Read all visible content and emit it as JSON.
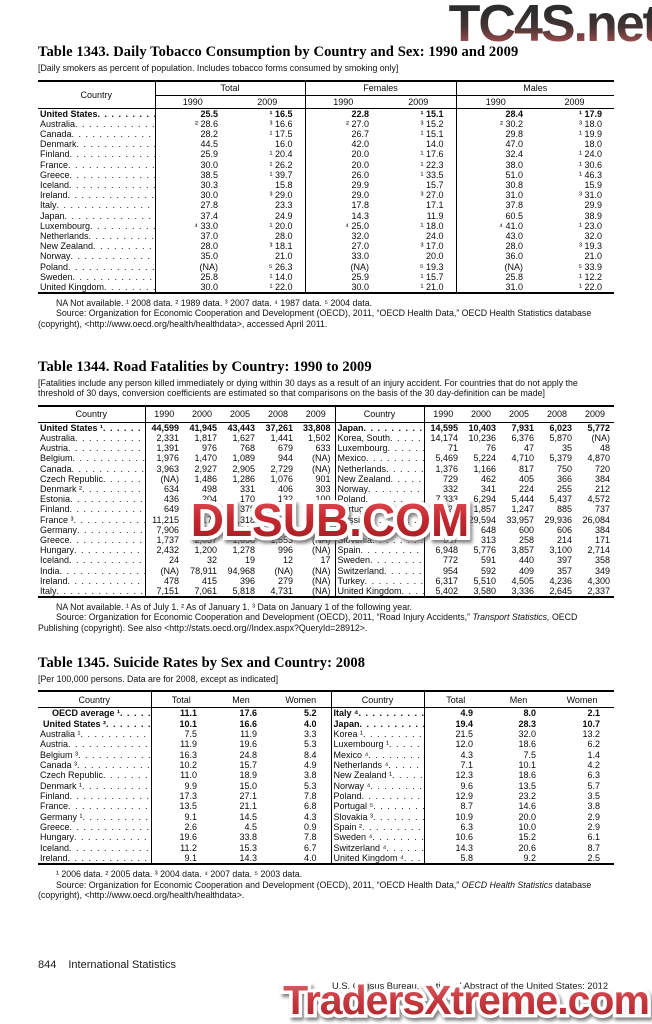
{
  "watermarks": {
    "top": "TC4S.net",
    "middle": "DLSUB.COM",
    "bottom": "TradersXtreme.com"
  },
  "footer": {
    "page_number": "844",
    "section": "International Statistics",
    "credit": "U.S. Census Bureau, Statistical Abstract of the United States: 2012"
  },
  "table1343": {
    "title": "Table 1343. Daily Tobacco Consumption by Country and Sex: 1990 and 2009",
    "note": "[Daily smokers as percent of population. Includes tobacco forms consumed by smoking only]",
    "country_header": "Country",
    "groups": [
      "Total",
      "Females",
      "Males"
    ],
    "years": [
      "1990",
      "2009"
    ],
    "rows": [
      {
        "label": "United States",
        "bold": true,
        "values": [
          "25.5",
          "¹ 16.5",
          "22.8",
          "¹ 15.1",
          "28.4",
          "¹ 17.9"
        ]
      },
      {
        "label": "Australia",
        "values": [
          "² 28.6",
          "³ 16.6",
          "² 27.0",
          "³ 15.2",
          "² 30.2",
          "³ 18.0"
        ]
      },
      {
        "label": "Canada",
        "values": [
          "28.2",
          "¹ 17.5",
          "26.7",
          "¹ 15.1",
          "29.8",
          "¹ 19.9"
        ]
      },
      {
        "label": "Denmark",
        "values": [
          "44.5",
          "16.0",
          "42.0",
          "14.0",
          "47.0",
          "18.0"
        ]
      },
      {
        "label": "Finland",
        "values": [
          "25.9",
          "¹ 20.4",
          "20.0",
          "¹ 17.6",
          "32.4",
          "¹ 24.0"
        ]
      },
      {
        "label": "France",
        "values": [
          "30.0",
          "¹ 26.2",
          "20.0",
          "¹ 22.3",
          "38.0",
          "¹ 30.6"
        ]
      },
      {
        "label": "Greece",
        "values": [
          "38.5",
          "¹ 39.7",
          "26.0",
          "¹ 33.5",
          "51.0",
          "¹ 46.3"
        ]
      },
      {
        "label": "Iceland",
        "values": [
          "30.3",
          "15.8",
          "29.9",
          "15.7",
          "30.8",
          "15.9"
        ]
      },
      {
        "label": "Ireland",
        "values": [
          "30.0",
          "³ 29.0",
          "29.0",
          "³ 27.0",
          "31.0",
          "³ 31.0"
        ]
      },
      {
        "label": "Italy",
        "values": [
          "27.8",
          "23.3",
          "17.8",
          "17.1",
          "37.8",
          "29.9"
        ]
      },
      {
        "label": "Japan",
        "values": [
          "37.4",
          "24.9",
          "14.3",
          "11.9",
          "60.5",
          "38.9"
        ]
      },
      {
        "label": "Luxembourg",
        "values": [
          "⁴ 33.0",
          "¹ 20.0",
          "⁴ 25.0",
          "¹ 18.0",
          "⁴ 41.0",
          "¹ 23.0"
        ]
      },
      {
        "label": "Netherlands",
        "values": [
          "37.0",
          "28.0",
          "32.0",
          "24.0",
          "43.0",
          "32.0"
        ]
      },
      {
        "label": "New Zealand",
        "values": [
          "28.0",
          "³ 18.1",
          "27.0",
          "³ 17.0",
          "28.0",
          "³ 19.3"
        ]
      },
      {
        "label": "Norway",
        "values": [
          "35.0",
          "21.0",
          "33.0",
          "20.0",
          "36.0",
          "21.0"
        ]
      },
      {
        "label": "Poland",
        "values": [
          "(NA)",
          "⁵ 26.3",
          "(NA)",
          "⁵ 19.3",
          "(NA)",
          "⁵ 33.9"
        ]
      },
      {
        "label": "Sweden",
        "values": [
          "25.8",
          "¹ 14.0",
          "25.9",
          "¹ 15.7",
          "25.8",
          "¹ 12.2"
        ]
      },
      {
        "label": "United Kingdom",
        "values": [
          "30.0",
          "¹ 22.0",
          "30.0",
          "¹ 21.0",
          "31.0",
          "¹ 22.0"
        ]
      }
    ],
    "footnote": "NA Not available. ¹ 2008 data. ² 1989 data. ³ 2007 data. ⁴ 1987 data. ⁵ 2004 data.",
    "source": "Source: Organization for Economic Cooperation and Development (OECD), 2011, “OECD Health Data,” OECD Health Statistics database (copyright), <http://www.oecd.org/health/healthdata>, accessed April 2011."
  },
  "table1344": {
    "title": "Table 1344. Road Fatalities by Country: 1990 to 2009",
    "note": "[Fatalities include any person killed immediately or dying within 30 days as a result of an injury accident. For countries that do not apply the threshold of 30 days, conversion coefficients are estimated so that comparisons on the basis of the 30 day-definition can be made]",
    "country_header": "Country",
    "years": [
      "1990",
      "2000",
      "2005",
      "2008",
      "2009"
    ],
    "left_rows": [
      {
        "label": "United States ¹",
        "bold": true,
        "values": [
          "44,599",
          "41,945",
          "43,443",
          "37,261",
          "33,808"
        ]
      },
      {
        "label": "Australia",
        "values": [
          "2,331",
          "1,817",
          "1,627",
          "1,441",
          "1,502"
        ]
      },
      {
        "label": "Austria",
        "values": [
          "1,391",
          "976",
          "768",
          "679",
          "633"
        ]
      },
      {
        "label": "Belgium",
        "values": [
          "1,976",
          "1,470",
          "1,089",
          "944",
          "(NA)"
        ]
      },
      {
        "label": "Canada",
        "values": [
          "3,963",
          "2,927",
          "2,905",
          "2,729",
          "(NA)"
        ]
      },
      {
        "label": "Czech Republic",
        "values": [
          "(NA)",
          "1,486",
          "1,286",
          "1,076",
          "901"
        ]
      },
      {
        "label": "Denmark ²",
        "values": [
          "634",
          "498",
          "331",
          "406",
          "303"
        ]
      },
      {
        "label": "Estonia",
        "values": [
          "436",
          "204",
          "170",
          "132",
          "100"
        ]
      },
      {
        "label": "Finland",
        "values": [
          "649",
          "396",
          "379",
          "344",
          "279"
        ]
      },
      {
        "label": "France ³",
        "values": [
          "11,215",
          "8,170",
          "5,318",
          "4,275",
          "4,273"
        ]
      },
      {
        "label": "Germany",
        "values": [
          "7,906",
          "7,503",
          "5,361",
          "4,477",
          "4,152"
        ]
      },
      {
        "label": "Greece",
        "values": [
          "1,737",
          "2,037",
          "1,658",
          "1,553",
          "(NA)"
        ]
      },
      {
        "label": "Hungary",
        "values": [
          "2,432",
          "1,200",
          "1,278",
          "996",
          "(NA)"
        ]
      },
      {
        "label": "Iceland",
        "values": [
          "24",
          "32",
          "19",
          "12",
          "17"
        ]
      },
      {
        "label": "India",
        "values": [
          "(NA)",
          "78,911",
          "94,968",
          "(NA)",
          "(NA)"
        ]
      },
      {
        "label": "Ireland",
        "values": [
          "478",
          "415",
          "396",
          "279",
          "(NA)"
        ]
      },
      {
        "label": "Italy",
        "values": [
          "7,151",
          "7,061",
          "5,818",
          "4,731",
          "(NA)"
        ]
      }
    ],
    "right_rows": [
      {
        "label": "Japan",
        "values": [
          "14,595",
          "10,403",
          "7,931",
          "6,023",
          "5,772"
        ]
      },
      {
        "label": "Korea, South",
        "values": [
          "14,174",
          "10,236",
          "6,376",
          "5,870",
          "(NA)"
        ]
      },
      {
        "label": "Luxembourg",
        "values": [
          "71",
          "76",
          "47",
          "35",
          "48"
        ]
      },
      {
        "label": "Mexico",
        "values": [
          "5,469",
          "5,224",
          "4,710",
          "5,379",
          "4,870"
        ]
      },
      {
        "label": "Netherlands",
        "values": [
          "1,376",
          "1,166",
          "817",
          "750",
          "720"
        ]
      },
      {
        "label": "New Zealand",
        "values": [
          "729",
          "462",
          "405",
          "366",
          "384"
        ]
      },
      {
        "label": "Norway",
        "values": [
          "332",
          "341",
          "224",
          "255",
          "212"
        ]
      },
      {
        "label": "Poland",
        "values": [
          "7,333",
          "6,294",
          "5,444",
          "5,437",
          "4,572"
        ]
      },
      {
        "label": "Portugal",
        "values": [
          "2,321",
          "1,857",
          "1,247",
          "885",
          "737"
        ]
      },
      {
        "label": "Russia",
        "values": [
          "35,366",
          "29,594",
          "33,957",
          "29,936",
          "26,084"
        ]
      },
      {
        "label": "Slovak Republic",
        "values": [
          "(NA)",
          "648",
          "600",
          "606",
          "384"
        ]
      },
      {
        "label": "Slovenia",
        "values": [
          "517",
          "313",
          "258",
          "214",
          "171"
        ]
      },
      {
        "label": "Spain",
        "values": [
          "6,948",
          "5,776",
          "3,857",
          "3,100",
          "2,714"
        ]
      },
      {
        "label": "Sweden",
        "values": [
          "772",
          "591",
          "440",
          "397",
          "358"
        ]
      },
      {
        "label": "Switzerland",
        "values": [
          "954",
          "592",
          "409",
          "357",
          "349"
        ]
      },
      {
        "label": "Turkey",
        "values": [
          "6,317",
          "5,510",
          "4,505",
          "4,236",
          "4,300"
        ]
      },
      {
        "label": "United Kingdom",
        "values": [
          "5,402",
          "3,580",
          "3,336",
          "2,645",
          "2,337"
        ]
      }
    ],
    "footnote": "NA Not available. ¹ As of July 1. ² As of January 1. ³ Data on January 1 of the following year.",
    "source_pre": "Source: Organization for Economic Cooperation and Development (OECD), 2011, “Road Injury Accidents,” ",
    "source_italic": "Transport Statistics,",
    "source_post": " OECD Publishing (copyright). See also <http://stats.oecd.org//Index.aspx?QueryId=28912>."
  },
  "table1345": {
    "title": "Table 1345. Suicide Rates by Sex and Country: 2008",
    "note": "[Per 100,000 persons. Data are for 2008, except as indicated]",
    "country_header": "Country",
    "col_headers": [
      "Total",
      "Men",
      "Women"
    ],
    "left_rows": [
      {
        "label": "OECD average ¹",
        "bold": true,
        "indent": 12,
        "values": [
          "11.1",
          "17.6",
          "5.2"
        ]
      },
      {
        "label": "United States ²",
        "bold": true,
        "indent": 3,
        "values": [
          "10.1",
          "16.6",
          "4.0"
        ]
      },
      {
        "label": "Australia ¹",
        "values": [
          "7.5",
          "11.9",
          "3.3"
        ]
      },
      {
        "label": "Austria",
        "values": [
          "11.9",
          "19.6",
          "5.3"
        ]
      },
      {
        "label": "Belgium ³",
        "values": [
          "16.3",
          "24.8",
          "8.4"
        ]
      },
      {
        "label": "Canada ³",
        "values": [
          "10.2",
          "15.7",
          "4.9"
        ]
      },
      {
        "label": "Czech Republic",
        "values": [
          "11.0",
          "18.9",
          "3.8"
        ]
      },
      {
        "label": "Denmark ¹",
        "values": [
          "9.9",
          "15.0",
          "5.3"
        ]
      },
      {
        "label": "Finland",
        "values": [
          "17.3",
          "27.1",
          "7.8"
        ]
      },
      {
        "label": "France",
        "values": [
          "13.5",
          "21.1",
          "6.8"
        ]
      },
      {
        "label": "Germany ¹",
        "values": [
          "9.1",
          "14.5",
          "4.3"
        ]
      },
      {
        "label": "Greece",
        "values": [
          "2.6",
          "4.5",
          "0.9"
        ]
      },
      {
        "label": "Hungary",
        "values": [
          "19.6",
          "33.8",
          "7.8"
        ]
      },
      {
        "label": "Iceland",
        "values": [
          "11.2",
          "15.3",
          "6.7"
        ]
      },
      {
        "label": "Ireland",
        "values": [
          "9.1",
          "14.3",
          "4.0"
        ]
      }
    ],
    "right_rows": [
      {
        "label": "Italy ⁴",
        "values": [
          "4.9",
          "8.0",
          "2.1"
        ]
      },
      {
        "label": "Japan",
        "values": [
          "19.4",
          "28.3",
          "10.7"
        ]
      },
      {
        "label": "Korea ¹",
        "values": [
          "21.5",
          "32.0",
          "13.2"
        ]
      },
      {
        "label": "Luxembourg ¹",
        "values": [
          "12.0",
          "18.6",
          "6.2"
        ]
      },
      {
        "label": "Mexico ⁴",
        "values": [
          "4.3",
          "7.5",
          "1.4"
        ]
      },
      {
        "label": "Netherlands ⁴",
        "values": [
          "7.1",
          "10.1",
          "4.2"
        ]
      },
      {
        "label": "New Zealand ¹",
        "values": [
          "12.3",
          "18.6",
          "6.3"
        ]
      },
      {
        "label": "Norway ⁴",
        "values": [
          "9.6",
          "13.5",
          "5.7"
        ]
      },
      {
        "label": "Poland",
        "values": [
          "12.9",
          "23.2",
          "3.5"
        ]
      },
      {
        "label": "Portugal ⁵",
        "values": [
          "8.7",
          "14.6",
          "3.8"
        ]
      },
      {
        "label": "Slovakia ³",
        "values": [
          "10.9",
          "20.0",
          "2.9"
        ]
      },
      {
        "label": "Spain ²",
        "values": [
          "6.3",
          "10.0",
          "2.9"
        ]
      },
      {
        "label": "Sweden ⁴",
        "values": [
          "10.6",
          "15.2",
          "6.1"
        ]
      },
      {
        "label": "Switzerland ⁴",
        "values": [
          "14.3",
          "20.6",
          "8.7"
        ]
      },
      {
        "label": "United Kingdom ⁴",
        "values": [
          "5.8",
          "9.2",
          "2.5"
        ]
      }
    ],
    "footnote": "¹ 2006 data. ² 2005 data. ³ 2004 data. ⁴ 2007 data. ⁵ 2003 data.",
    "source_pre": "Source: Organization for Economic Cooperation and Development (OECD), 2011, “OECD Health Data,” ",
    "source_italic": "OECD Health Statistics",
    "source_post": " database (copyright), <http://www.oecd.org/health/healthdata>."
  }
}
